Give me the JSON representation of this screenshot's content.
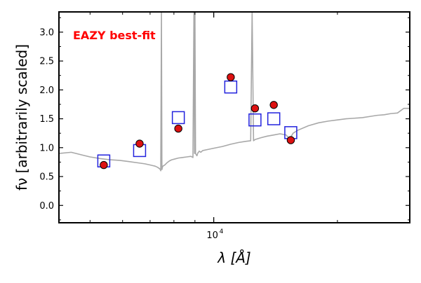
{
  "chart_data": {
    "type": "scatter",
    "title": "",
    "annotation": "EAZY best-fit",
    "annotation_color": "#ff0000",
    "xlabel": "λ [Å]",
    "ylabel": "fν [arbitrarily scaled]",
    "x_scale": "log",
    "xlim": [
      4200,
      30000
    ],
    "ylim": [
      -0.3,
      3.35
    ],
    "y_ticks": [
      0.0,
      0.5,
      1.0,
      1.5,
      2.0,
      2.5,
      3.0
    ],
    "y_tick_labels": [
      "0.0",
      "0.5",
      "1.0",
      "1.5",
      "2.0",
      "2.5",
      "3.0"
    ],
    "x_tick_label": {
      "x": 10000,
      "base": "10",
      "exp": "4"
    },
    "grid": false,
    "observed": {
      "color": "#dd1111",
      "x": [
        5400,
        6600,
        8200,
        11000,
        12600,
        14000,
        15400
      ],
      "y": [
        0.7,
        1.07,
        1.33,
        2.22,
        1.68,
        1.74,
        1.13
      ]
    },
    "model_bandpass": {
      "color": "#2222dd",
      "x": [
        5400,
        6600,
        8200,
        11000,
        12600,
        14000,
        15400
      ],
      "y": [
        0.77,
        0.95,
        1.52,
        2.05,
        1.48,
        1.5,
        1.26
      ]
    },
    "sed_spectrum": {
      "color": "#a8a8a8",
      "x": [
        4200,
        4500,
        4800,
        5000,
        5300,
        5600,
        5900,
        6200,
        6500,
        6800,
        7000,
        7100,
        7200,
        7300,
        7400,
        7430,
        7460,
        7480,
        7500,
        7520,
        7600,
        7700,
        7800,
        7900,
        8000,
        8200,
        8400,
        8600,
        8800,
        8900,
        8950,
        8980,
        9000,
        9030,
        9100,
        9150,
        9180,
        9220,
        9300,
        9400,
        9700,
        10000,
        10500,
        11000,
        11500,
        12000,
        12300,
        12400,
        12500,
        12600,
        13000,
        13500,
        14000,
        14500,
        15000,
        15300,
        15600,
        16000,
        17000,
        18000,
        19000,
        20000,
        21000,
        22000,
        23000,
        24000,
        25000,
        26000,
        27000,
        28000,
        29000,
        30000
      ],
      "y": [
        0.9,
        0.92,
        0.87,
        0.84,
        0.81,
        0.79,
        0.78,
        0.76,
        0.74,
        0.72,
        0.7,
        0.69,
        0.68,
        0.66,
        0.63,
        0.6,
        3.35,
        0.62,
        0.66,
        0.68,
        0.7,
        0.74,
        0.77,
        0.79,
        0.8,
        0.82,
        0.83,
        0.84,
        0.85,
        0.83,
        3.35,
        0.9,
        3.35,
        0.9,
        0.86,
        0.91,
        0.92,
        0.94,
        0.92,
        0.95,
        0.97,
        0.99,
        1.02,
        1.06,
        1.09,
        1.11,
        1.12,
        3.35,
        1.12,
        1.14,
        1.17,
        1.2,
        1.22,
        1.24,
        1.22,
        1.15,
        1.25,
        1.3,
        1.38,
        1.43,
        1.46,
        1.48,
        1.5,
        1.51,
        1.52,
        1.54,
        1.56,
        1.57,
        1.59,
        1.6,
        1.68,
        1.68
      ]
    }
  }
}
